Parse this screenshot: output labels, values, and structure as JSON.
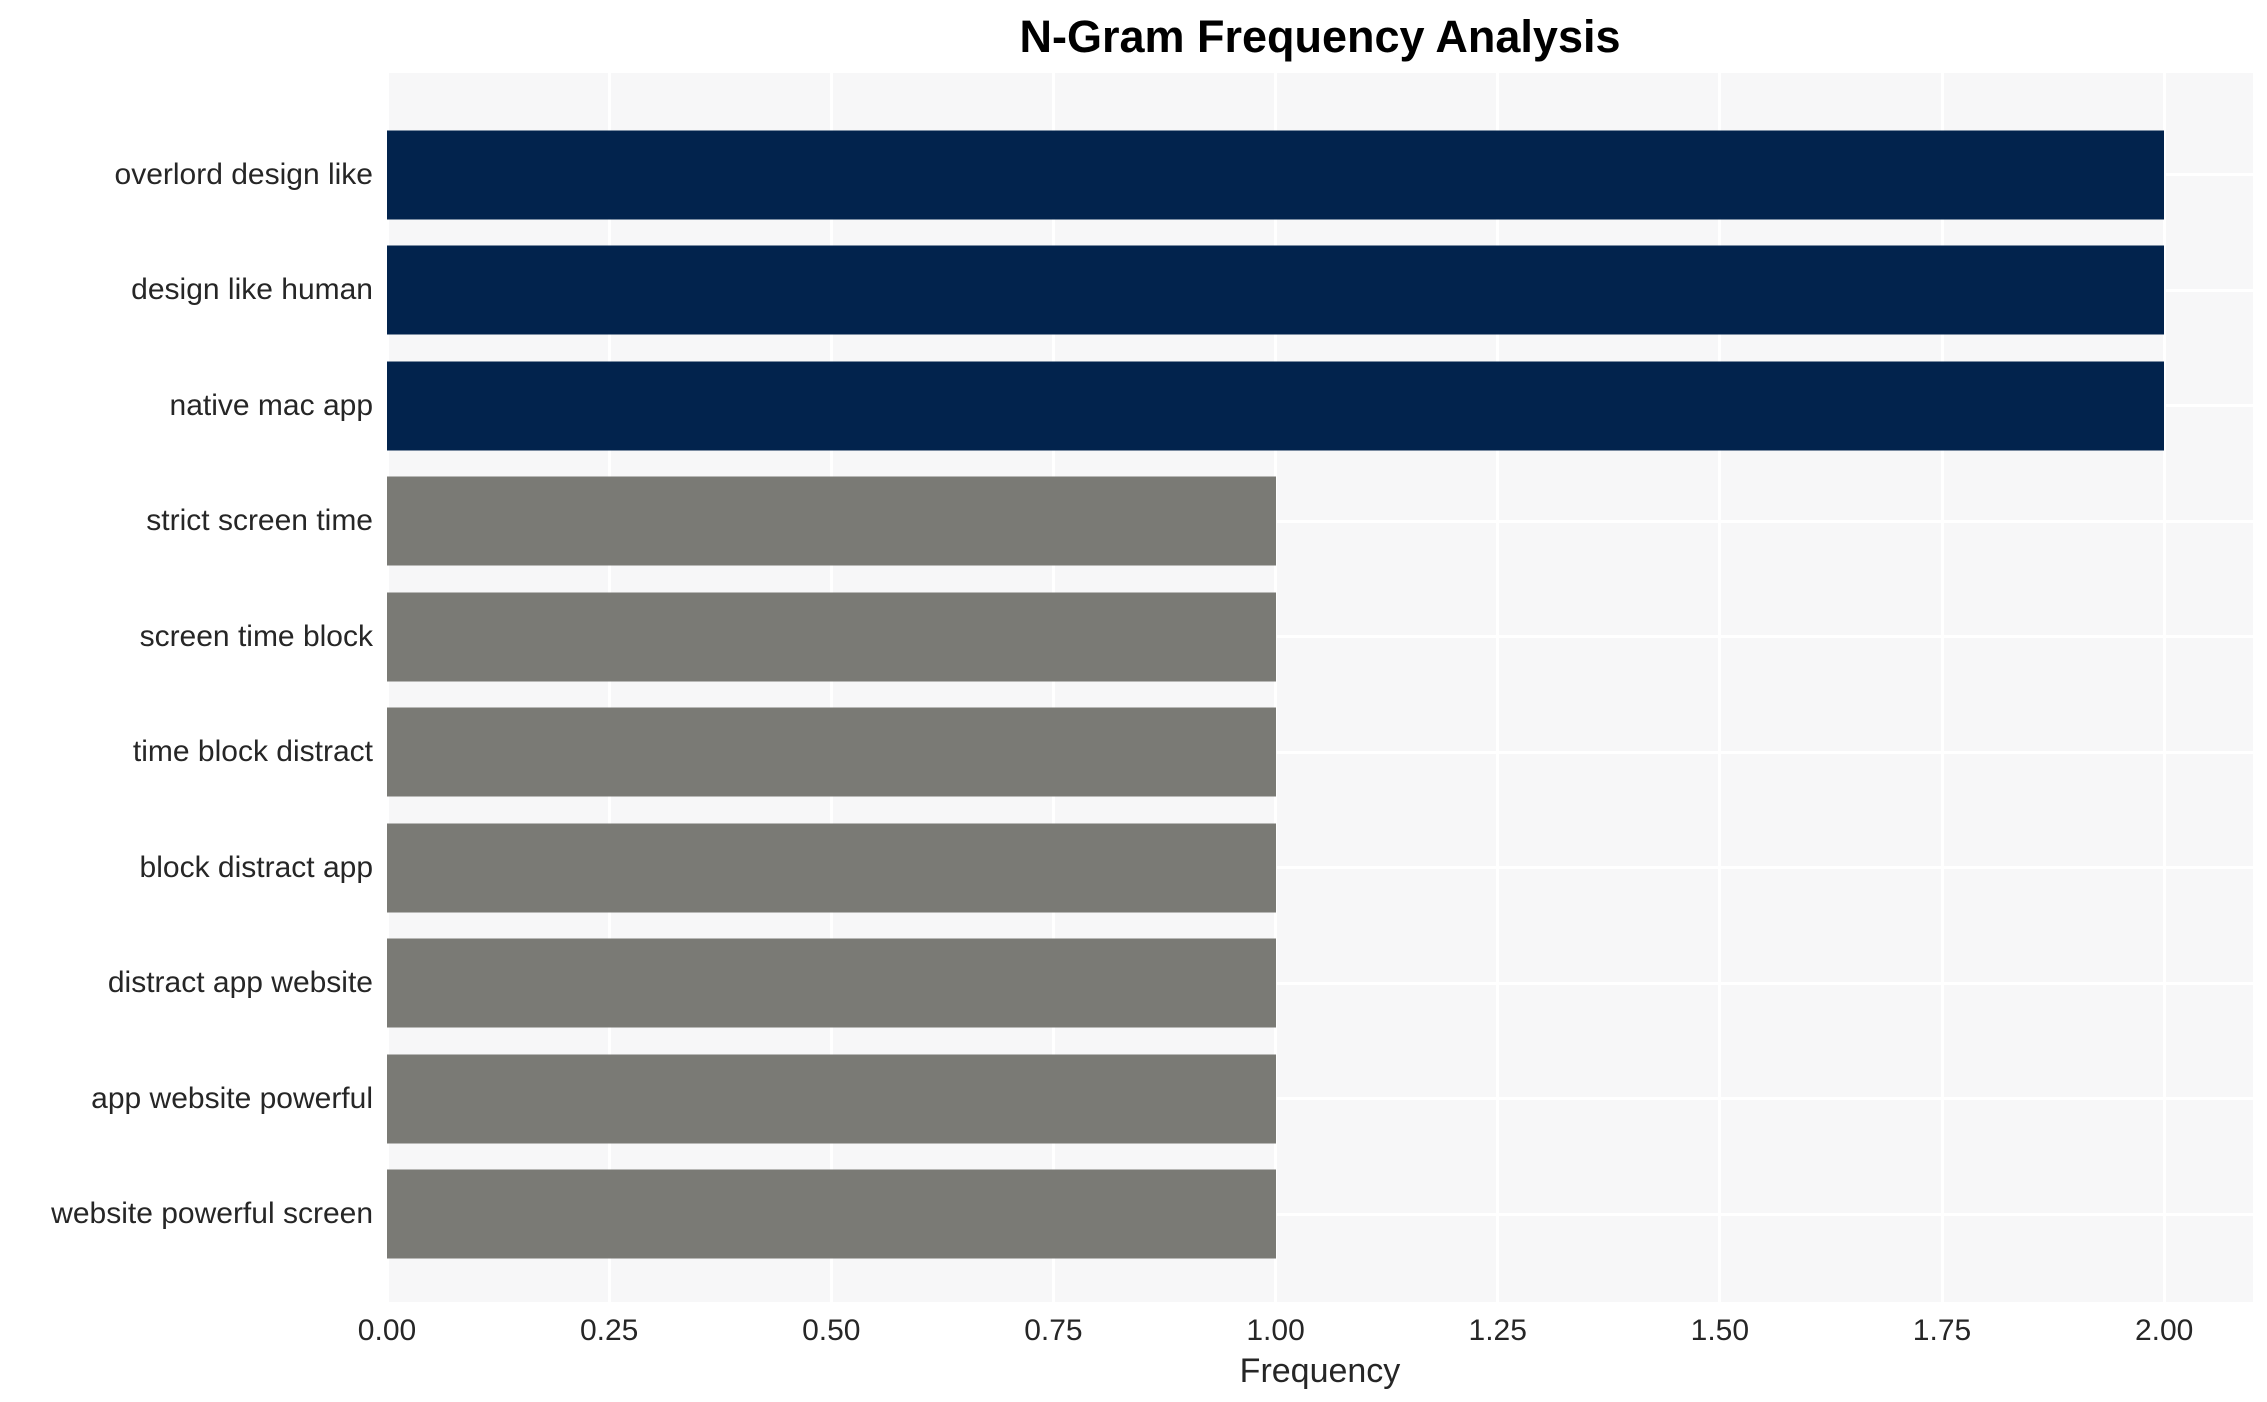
{
  "chart_data": {
    "type": "bar",
    "orientation": "horizontal",
    "title": "N-Gram Frequency Analysis",
    "categories": [
      "overlord design like",
      "design like human",
      "native mac app",
      "strict screen time",
      "screen time block",
      "time block distract",
      "block distract app",
      "distract app website",
      "app website powerful",
      "website powerful screen"
    ],
    "values": [
      2,
      2,
      2,
      1,
      1,
      1,
      1,
      1,
      1,
      1
    ],
    "bar_colors": [
      "#02234d",
      "#02234d",
      "#02234d",
      "#7a7a75",
      "#7a7a75",
      "#7a7a75",
      "#7a7a75",
      "#7a7a75",
      "#7a7a75",
      "#7a7a75"
    ],
    "xlabel": "Frequency",
    "xlim": [
      0,
      2.1
    ],
    "xticks": [
      0.0,
      0.25,
      0.5,
      0.75,
      1.0,
      1.25,
      1.5,
      1.75,
      2.0
    ],
    "xtick_labels": [
      "0.00",
      "0.25",
      "0.50",
      "0.75",
      "1.00",
      "1.25",
      "1.50",
      "1.75",
      "2.00"
    ],
    "grid": true,
    "legend": false,
    "colors": {
      "highlight_bar": "#02234d",
      "default_bar": "#7a7a75",
      "plot_background": "#f7f7f8",
      "gridline": "#ffffff",
      "text": "#262626",
      "title_text": "#000000",
      "figure_background": "#ffffff"
    }
  }
}
